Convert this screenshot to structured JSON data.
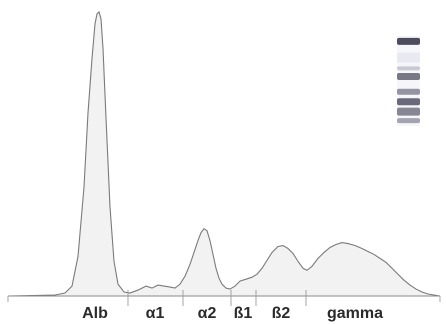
{
  "chart_data": {
    "type": "line",
    "title": "",
    "xlabel": "",
    "ylabel": "",
    "grid": false,
    "legend": "none",
    "categories": [
      "Alb",
      "α1",
      "α2",
      "ß1",
      "ß2",
      "gamma"
    ],
    "region_boundaries": [
      128,
      183,
      231,
      256,
      306
    ],
    "xlim": [
      8,
      440
    ],
    "ylim": [
      0,
      290
    ],
    "series": [
      {
        "name": "",
        "x": [
          8,
          55,
          65,
          72,
          78,
          84,
          88,
          92,
          95,
          97,
          99,
          101,
          103,
          106,
          110,
          114,
          118,
          124,
          130,
          138,
          146,
          152,
          158,
          164,
          170,
          175,
          180,
          185,
          190,
          194,
          198,
          201,
          204,
          207,
          210,
          213,
          216,
          219,
          222,
          226,
          230,
          235,
          240,
          246,
          252,
          257,
          262,
          267,
          272,
          278,
          283,
          288,
          293,
          298,
          303,
          307,
          312,
          318,
          324,
          330,
          336,
          342,
          348,
          355,
          362,
          368,
          374,
          380,
          386,
          392,
          398,
          404,
          410,
          416,
          422,
          428,
          434,
          440
        ],
        "y": [
          0,
          1,
          3,
          10,
          40,
          110,
          185,
          240,
          275,
          285,
          287,
          280,
          250,
          180,
          90,
          35,
          12,
          4,
          3,
          6,
          10,
          8,
          11,
          10,
          9,
          8,
          12,
          20,
          32,
          44,
          56,
          64,
          68,
          66,
          56,
          42,
          28,
          18,
          12,
          8,
          7,
          10,
          15,
          17,
          19,
          22,
          28,
          36,
          44,
          50,
          51,
          48,
          43,
          35,
          28,
          26,
          30,
          38,
          44,
          49,
          52,
          54,
          53,
          51,
          48,
          45,
          42,
          38,
          34,
          28,
          22,
          16,
          11,
          7,
          4,
          2,
          1,
          0
        ]
      }
    ],
    "gel_bands": [
      {
        "position": 0.06,
        "shade": "#3a3a4a",
        "thickness": 7
      },
      {
        "position": 0.24,
        "shade": "#e8e8f0",
        "thickness": 10
      },
      {
        "position": 0.36,
        "shade": "#c4c4d0",
        "thickness": 4
      },
      {
        "position": 0.45,
        "shade": "#6a6a78",
        "thickness": 7
      },
      {
        "position": 0.62,
        "shade": "#8a8a98",
        "thickness": 6
      },
      {
        "position": 0.73,
        "shade": "#5a5a6a",
        "thickness": 7
      },
      {
        "position": 0.84,
        "shade": "#7a7a88",
        "thickness": 8
      },
      {
        "position": 0.94,
        "shade": "#9a9aa8",
        "thickness": 5
      }
    ]
  }
}
